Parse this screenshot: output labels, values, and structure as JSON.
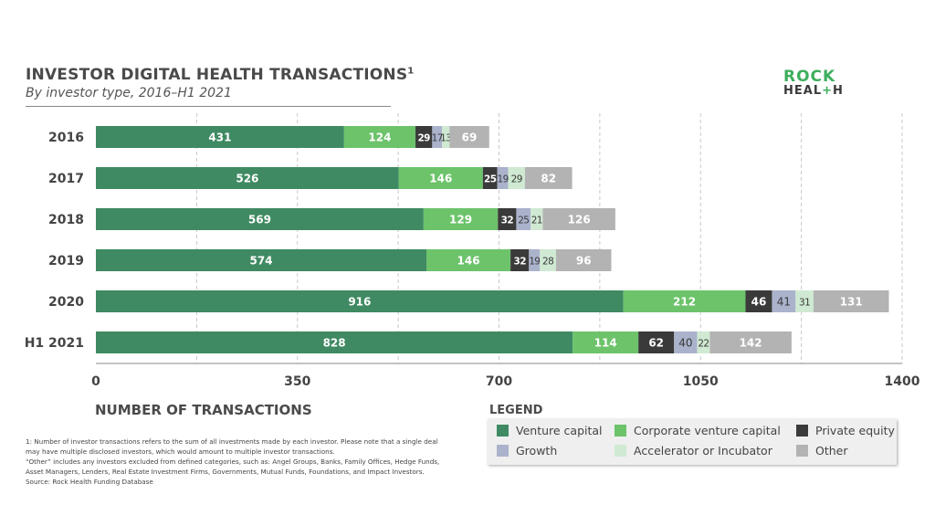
{
  "header": {
    "title": "INVESTOR DIGITAL HEALTH TRANSACTIONS",
    "title_sup": "1",
    "subtitle": "By investor type, 2016–H1 2021"
  },
  "logo": {
    "line1": "ROCK",
    "line2_a": "HEAL",
    "line2_plus": "+",
    "line2_b": "H"
  },
  "chart_data": {
    "type": "bar",
    "orientation": "horizontal",
    "stacked": true,
    "categories": [
      "2016",
      "2017",
      "2018",
      "2019",
      "2020",
      "H1 2021"
    ],
    "series": [
      {
        "name": "Venture capital",
        "color": "#3f8a62",
        "values": [
          431,
          526,
          569,
          574,
          916,
          828
        ]
      },
      {
        "name": "Corporate venture capital",
        "color": "#6cc36a",
        "values": [
          124,
          146,
          129,
          146,
          212,
          114
        ]
      },
      {
        "name": "Private equity",
        "color": "#3a3a3a",
        "values": [
          29,
          25,
          32,
          32,
          46,
          62
        ]
      },
      {
        "name": "Growth",
        "color": "#aab2cc",
        "values": [
          17,
          19,
          25,
          19,
          41,
          40
        ]
      },
      {
        "name": "Accelerator or Incubator",
        "color": "#cfe9d2",
        "values": [
          13,
          29,
          21,
          28,
          31,
          22
        ]
      },
      {
        "name": "Other",
        "color": "#b3b3b3",
        "values": [
          69,
          82,
          126,
          96,
          131,
          142
        ]
      }
    ],
    "xlim": [
      0,
      1400
    ],
    "xticks": [
      0,
      350,
      700,
      1050,
      1400
    ],
    "xlabel": "NUMBER OF TRANSACTIONS",
    "ylabel": "",
    "grid": "vertical dashed",
    "legend_position": "bottom-right"
  },
  "legend": {
    "title": "LEGEND"
  },
  "footnote": {
    "lines": [
      "1: Number of investor transactions refers to the sum of all investments made by each investor. Please note that a single deal",
      "may have multiple disclosed investors, which would amount to multiple investor transactions.",
      "“Other” includes any investors excluded from defined categories, such as: Angel Groups, Banks, Family Offices, Hedge Funds,",
      "Asset Managers, Lenders, Real Estate Investment Firms, Governments, Mutual Funds, Foundations, and Impact Investors.",
      "Source: Rock Health Funding Database"
    ]
  }
}
